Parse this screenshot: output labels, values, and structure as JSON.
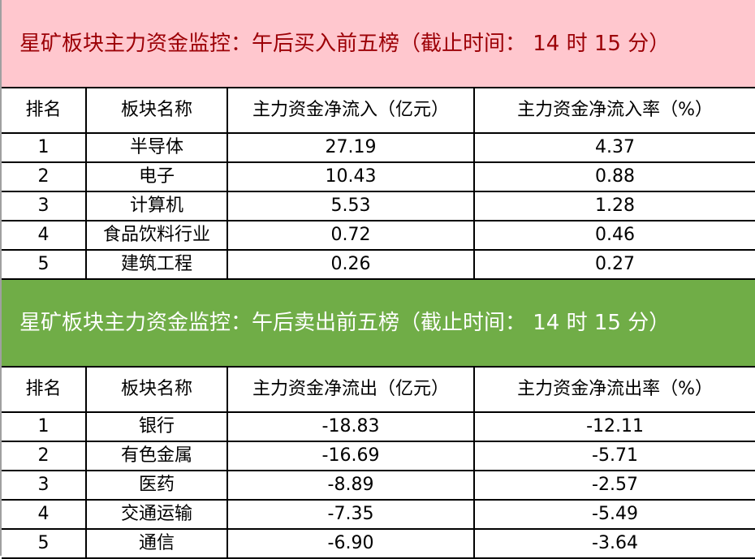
{
  "colors": {
    "buy_banner": "#ffc7ce",
    "buy_title_text": "#9c0006",
    "sell_banner": "#70ad47",
    "sell_title_text": "#ffffff"
  },
  "buy": {
    "title": "星矿板块主力资金监控：午后买入前五榜（截止时间： 14 时 15 分）",
    "headers": [
      "排名",
      "板块名称",
      "主力资金净流入（亿元）",
      "主力资金净流入率（%）"
    ],
    "rows": [
      [
        "1",
        "半导体",
        "27.19",
        "4.37"
      ],
      [
        "2",
        "电子",
        "10.43",
        "0.88"
      ],
      [
        "3",
        "计算机",
        "5.53",
        "1.28"
      ],
      [
        "4",
        "食品饮料行业",
        "0.72",
        "0.46"
      ],
      [
        "5",
        "建筑工程",
        "0.26",
        "0.27"
      ]
    ]
  },
  "sell": {
    "title": "星矿板块主力资金监控：午后卖出前五榜（截止时间： 14 时 15 分）",
    "headers": [
      "排名",
      "板块名称",
      "主力资金净流出（亿元）",
      "主力资金净流出率（%）"
    ],
    "rows": [
      [
        "1",
        "银行",
        "-18.83",
        "-12.11"
      ],
      [
        "2",
        "有色金属",
        "-16.69",
        "-5.71"
      ],
      [
        "3",
        "医药",
        "-8.89",
        "-2.57"
      ],
      [
        "4",
        "交通运输",
        "-7.35",
        "-5.49"
      ],
      [
        "5",
        "通信",
        "-6.90",
        "-3.64"
      ]
    ]
  }
}
